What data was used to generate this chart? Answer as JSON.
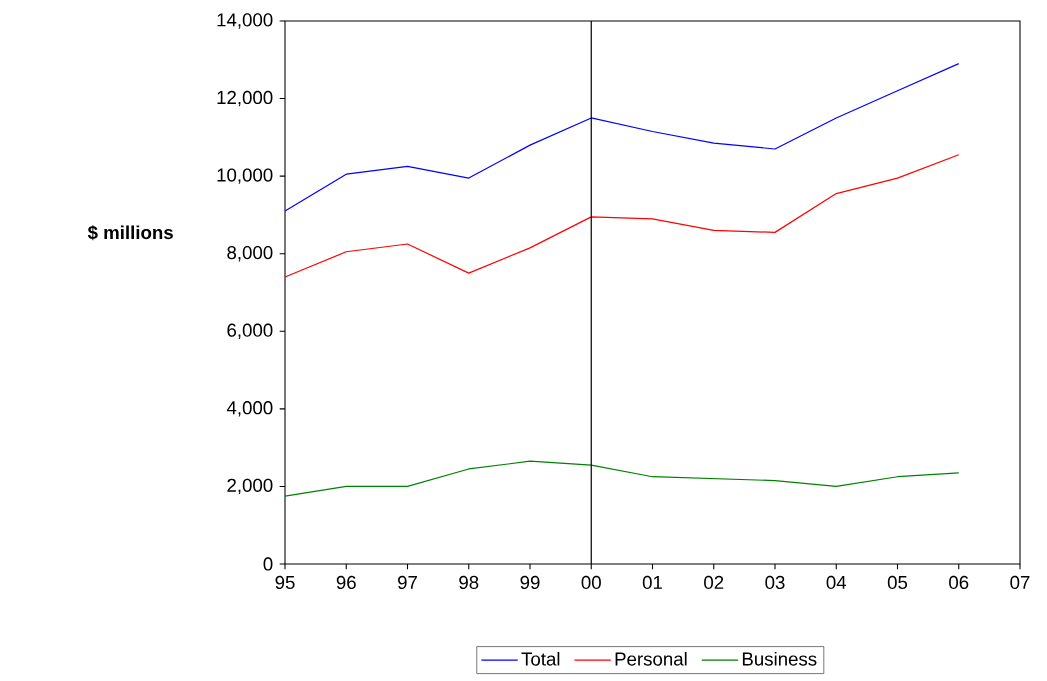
{
  "chart_data": {
    "type": "line",
    "ylabel": "**$ millions**",
    "x": [
      1995,
      1996,
      1997,
      1998,
      1999,
      2000,
      2001,
      2002,
      2003,
      2004,
      2005,
      2006
    ],
    "series": [
      {
        "name": "Total",
        "color": "#0000ff",
        "values": [
          9100,
          10050,
          10250,
          9950,
          10800,
          11500,
          11150,
          10850,
          10700,
          11500,
          12200,
          12900
        ]
      },
      {
        "name": "Personal",
        "color": "#ff0000",
        "values": [
          7400,
          8050,
          8250,
          7500,
          8150,
          8950,
          8900,
          8600,
          8550,
          9550,
          9950,
          10550
        ]
      },
      {
        "name": "Business",
        "color": "#008000",
        "values": [
          1750,
          2000,
          2000,
          2450,
          2650,
          2550,
          2250,
          2200,
          2150,
          2000,
          2250,
          2350
        ]
      }
    ],
    "xlim": [
      1995,
      2007
    ],
    "xticks": [
      {
        "value": 1995,
        "label": "95"
      },
      {
        "value": 1996,
        "label": "96"
      },
      {
        "value": 1997,
        "label": "97"
      },
      {
        "value": 1998,
        "label": "98"
      },
      {
        "value": 1999,
        "label": "99"
      },
      {
        "value": 2000,
        "label": "00"
      },
      {
        "value": 2001,
        "label": "01"
      },
      {
        "value": 2002,
        "label": "02"
      },
      {
        "value": 2003,
        "label": "03"
      },
      {
        "value": 2004,
        "label": "04"
      },
      {
        "value": 2005,
        "label": "05"
      },
      {
        "value": 2006,
        "label": "06"
      },
      {
        "value": 2007,
        "label": "07"
      }
    ],
    "ylim": [
      0,
      14000
    ],
    "yticks": [
      {
        "value": 0,
        "label": "0"
      },
      {
        "value": 2000,
        "label": "2,000"
      },
      {
        "value": 4000,
        "label": "4,000"
      },
      {
        "value": 6000,
        "label": "6,000"
      },
      {
        "value": 8000,
        "label": "8,000"
      },
      {
        "value": 10000,
        "label": "10,000"
      },
      {
        "value": 12000,
        "label": "12,000"
      },
      {
        "value": 14000,
        "label": "14,000"
      }
    ],
    "ref_lines": [
      {
        "axis": "x",
        "value": 2000,
        "color": "#000000"
      }
    ],
    "grid": false,
    "legend": "bottom",
    "marker": "none",
    "line_style": "solid"
  }
}
